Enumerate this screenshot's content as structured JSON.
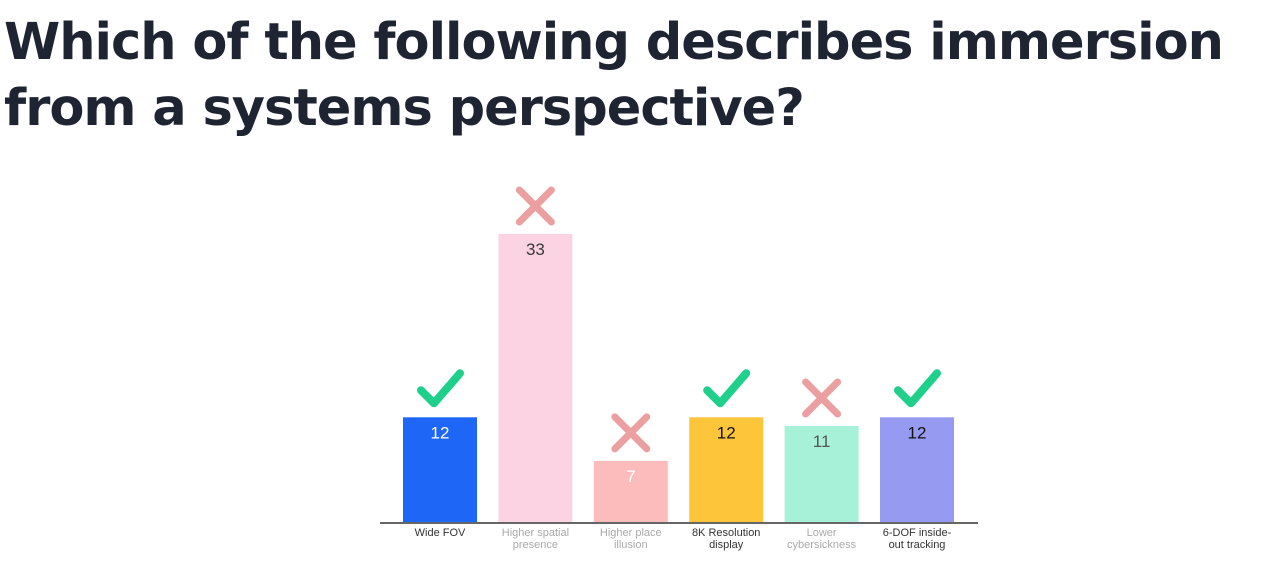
{
  "question": {
    "line1": "Which of the following describes immersion",
    "line2": "from a systems perspective?"
  },
  "chart_data": {
    "type": "bar",
    "categories": [
      [
        "Wide FOV"
      ],
      [
        "Higher spatial",
        "presence"
      ],
      [
        "Higher place",
        "illusion"
      ],
      [
        "8K Resolution",
        "display"
      ],
      [
        "Lower",
        "cybersickness"
      ],
      [
        "6-DOF inside-",
        "out tracking"
      ]
    ],
    "values": [
      12,
      33,
      7,
      12,
      11,
      12
    ],
    "correct": [
      true,
      false,
      false,
      true,
      false,
      true
    ],
    "bar_colors": [
      "#1e66f5",
      "#fcd3e2",
      "#fdbcbc",
      "#fdc53a",
      "#a6f1d8",
      "#979af1"
    ],
    "value_label_colors": [
      "#ffffff",
      "#3a3a3a",
      "#ffffff",
      "#111111",
      "#555555",
      "#111111"
    ],
    "label_text_colors": [
      "#333333",
      "#aaaaaa",
      "#aaaaaa",
      "#333333",
      "#aaaaaa",
      "#333333"
    ],
    "check_color": "#1fd08a",
    "cross_color": "#ec9fa0",
    "ylim": [
      0,
      33
    ],
    "grid": false
  }
}
